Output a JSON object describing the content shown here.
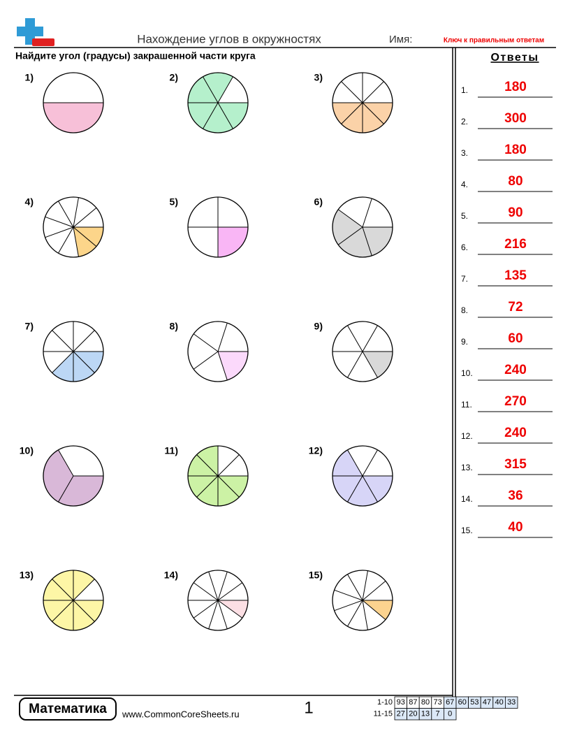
{
  "header": {
    "title": "Нахождение углов в окружностях",
    "name_label": "Имя:",
    "answer_key": "Ключ к правильным ответам"
  },
  "instructions": "Найдите угол (градусы) закрашенной части круга",
  "problems": [
    "1)",
    "2)",
    "3)",
    "4)",
    "5)",
    "6)",
    "7)",
    "8)",
    "9)",
    "10)",
    "11)",
    "12)",
    "13)",
    "14)",
    "15)"
  ],
  "answers": {
    "title": "Ответы",
    "items": [
      {
        "label": "1.",
        "value": "180"
      },
      {
        "label": "2.",
        "value": "300"
      },
      {
        "label": "3.",
        "value": "180"
      },
      {
        "label": "4.",
        "value": "80"
      },
      {
        "label": "5.",
        "value": "90"
      },
      {
        "label": "6.",
        "value": "216"
      },
      {
        "label": "7.",
        "value": "135"
      },
      {
        "label": "8.",
        "value": "72"
      },
      {
        "label": "9.",
        "value": "60"
      },
      {
        "label": "10.",
        "value": "240"
      },
      {
        "label": "11.",
        "value": "270"
      },
      {
        "label": "12.",
        "value": "240"
      },
      {
        "label": "13.",
        "value": "315"
      },
      {
        "label": "14.",
        "value": "36"
      },
      {
        "label": "15.",
        "value": "40"
      }
    ]
  },
  "footer": {
    "brand": "Математика",
    "website": "www.CommonCoreSheets.ru",
    "page": "1",
    "score_table": {
      "rows": [
        {
          "label": "1-10",
          "cells": [
            93,
            87,
            80,
            73,
            67,
            60,
            53,
            47,
            40,
            33
          ]
        },
        {
          "label": "11-15",
          "cells": [
            27,
            20,
            13,
            7,
            0
          ]
        }
      ]
    }
  }
}
